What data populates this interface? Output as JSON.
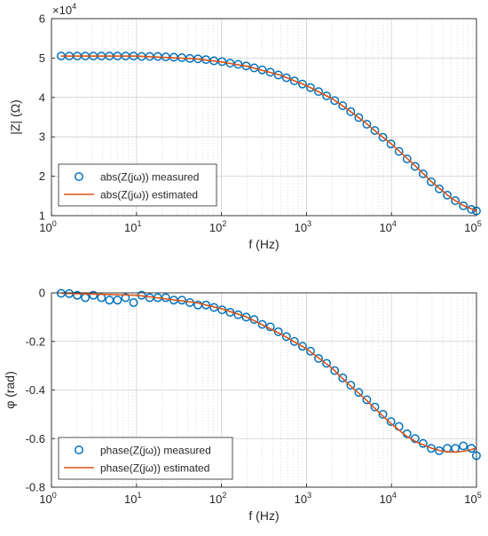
{
  "chart_data": [
    {
      "type": "scatter",
      "xscale": "log",
      "xlim": [
        1,
        100000
      ],
      "ylim": [
        1,
        6
      ],
      "y_exponent_label": "×10",
      "y_exponent_power": "4",
      "xlabel": "f (Hz)",
      "ylabel": "|Z| (Ω)",
      "x_ticks": [
        {
          "value": 1,
          "base": "10",
          "exp": "0"
        },
        {
          "value": 10,
          "base": "10",
          "exp": "1"
        },
        {
          "value": 100,
          "base": "10",
          "exp": "2"
        },
        {
          "value": 1000,
          "base": "10",
          "exp": "3"
        },
        {
          "value": 10000,
          "base": "10",
          "exp": "4"
        },
        {
          "value": 100000,
          "base": "10",
          "exp": "5"
        }
      ],
      "y_ticks": [
        {
          "value": 1,
          "label": "1"
        },
        {
          "value": 2,
          "label": "2"
        },
        {
          "value": 3,
          "label": "3"
        },
        {
          "value": 4,
          "label": "4"
        },
        {
          "value": 5,
          "label": "5"
        },
        {
          "value": 6,
          "label": "6"
        }
      ],
      "grid": true,
      "legend_position": "bottom-left",
      "series": [
        {
          "name": "abs(Z(jω)) measured",
          "kind": "markers",
          "color": "#0072BD",
          "x": [
            1.3,
            1.62,
            2.01,
            2.5,
            3.11,
            3.87,
            4.81,
            5.98,
            7.44,
            9.25,
            11.5,
            14.3,
            17.8,
            22.1,
            27.5,
            34.2,
            42.5,
            52.9,
            65.7,
            81.7,
            101.6,
            126.4,
            157.1,
            195.4,
            242.9,
            302,
            375.6,
            467,
            580.6,
            722,
            897.7,
            1116,
            1388,
            1726,
            2146,
            2668,
            3318,
            4125,
            5130,
            6378,
            7931,
            9862,
            12260,
            15250,
            18960,
            23570,
            29310,
            36450,
            45320,
            56350,
            70060,
            87120,
            100000
          ],
          "y": [
            5.05,
            5.05,
            5.05,
            5.05,
            5.05,
            5.05,
            5.05,
            5.05,
            5.05,
            5.05,
            5.04,
            5.04,
            5.04,
            5.03,
            5.02,
            5.01,
            4.99,
            4.98,
            4.96,
            4.93,
            4.91,
            4.87,
            4.84,
            4.8,
            4.75,
            4.7,
            4.64,
            4.57,
            4.5,
            4.42,
            4.34,
            4.25,
            4.15,
            4.04,
            3.92,
            3.79,
            3.64,
            3.49,
            3.32,
            3.16,
            2.99,
            2.82,
            2.63,
            2.44,
            2.25,
            2.06,
            1.86,
            1.68,
            1.52,
            1.38,
            1.25,
            1.16,
            1.12
          ]
        },
        {
          "name": "abs(Z(jω)) estimated",
          "kind": "line",
          "color": "#D95319",
          "x": [
            1.3,
            10,
            50,
            100,
            200,
            500,
            1000,
            2000,
            3000,
            5000,
            7000,
            10000,
            15000,
            20000,
            30000,
            50000,
            70000,
            100000
          ],
          "y": [
            5.05,
            5.05,
            4.98,
            4.9,
            4.79,
            4.56,
            4.3,
            3.97,
            3.71,
            3.35,
            3.08,
            2.82,
            2.47,
            2.22,
            1.85,
            1.45,
            1.26,
            1.12
          ]
        }
      ]
    },
    {
      "type": "scatter",
      "xscale": "log",
      "xlim": [
        1,
        100000
      ],
      "ylim": [
        -0.8,
        0
      ],
      "xlabel": "f (Hz)",
      "ylabel": "φ (rad)",
      "x_ticks": [
        {
          "value": 1,
          "base": "10",
          "exp": "0"
        },
        {
          "value": 10,
          "base": "10",
          "exp": "1"
        },
        {
          "value": 100,
          "base": "10",
          "exp": "2"
        },
        {
          "value": 1000,
          "base": "10",
          "exp": "3"
        },
        {
          "value": 10000,
          "base": "10",
          "exp": "4"
        },
        {
          "value": 100000,
          "base": "10",
          "exp": "5"
        }
      ],
      "y_ticks": [
        {
          "value": 0,
          "label": "0"
        },
        {
          "value": -0.2,
          "label": "-0.2"
        },
        {
          "value": -0.4,
          "label": "-0.4"
        },
        {
          "value": -0.6,
          "label": "-0.6"
        },
        {
          "value": -0.8,
          "label": "-0.8"
        }
      ],
      "grid": true,
      "legend_position": "bottom-left",
      "series": [
        {
          "name": "phase(Z(jω)) measured",
          "kind": "markers",
          "color": "#0072BD",
          "x": [
            1.3,
            1.62,
            2.01,
            2.5,
            3.11,
            3.87,
            4.81,
            5.98,
            7.44,
            9.25,
            11.5,
            14.3,
            17.8,
            22.1,
            27.5,
            34.2,
            42.5,
            52.9,
            65.7,
            81.7,
            101.6,
            126.4,
            157.1,
            195.4,
            242.9,
            302,
            375.6,
            467,
            580.6,
            722,
            897.7,
            1116,
            1388,
            1726,
            2146,
            2668,
            3318,
            4125,
            5130,
            6378,
            7931,
            9862,
            12260,
            15250,
            18960,
            23570,
            29310,
            36450,
            45320,
            56350,
            70060,
            87120,
            100000
          ],
          "y": [
            -0.002,
            -0.003,
            -0.01,
            -0.02,
            -0.01,
            -0.02,
            -0.03,
            -0.03,
            -0.02,
            -0.04,
            -0.01,
            -0.02,
            -0.02,
            -0.02,
            -0.03,
            -0.03,
            -0.04,
            -0.05,
            -0.05,
            -0.06,
            -0.07,
            -0.08,
            -0.09,
            -0.1,
            -0.11,
            -0.13,
            -0.14,
            -0.16,
            -0.18,
            -0.2,
            -0.22,
            -0.24,
            -0.27,
            -0.29,
            -0.32,
            -0.35,
            -0.38,
            -0.41,
            -0.44,
            -0.47,
            -0.5,
            -0.53,
            -0.55,
            -0.58,
            -0.6,
            -0.62,
            -0.64,
            -0.65,
            -0.64,
            -0.64,
            -0.63,
            -0.64,
            -0.67
          ]
        },
        {
          "name": "phase(Z(jω)) estimated",
          "kind": "line",
          "color": "#D95319",
          "x": [
            1.3,
            10,
            50,
            100,
            200,
            500,
            1000,
            2000,
            3000,
            5000,
            7000,
            10000,
            15000,
            20000,
            30000,
            40000,
            50000,
            60000,
            70000,
            80000,
            100000
          ],
          "y": [
            -0.002,
            -0.01,
            -0.04,
            -0.065,
            -0.1,
            -0.17,
            -0.23,
            -0.31,
            -0.37,
            -0.44,
            -0.49,
            -0.54,
            -0.59,
            -0.615,
            -0.64,
            -0.652,
            -0.655,
            -0.655,
            -0.652,
            -0.648,
            -0.64
          ]
        }
      ]
    }
  ]
}
